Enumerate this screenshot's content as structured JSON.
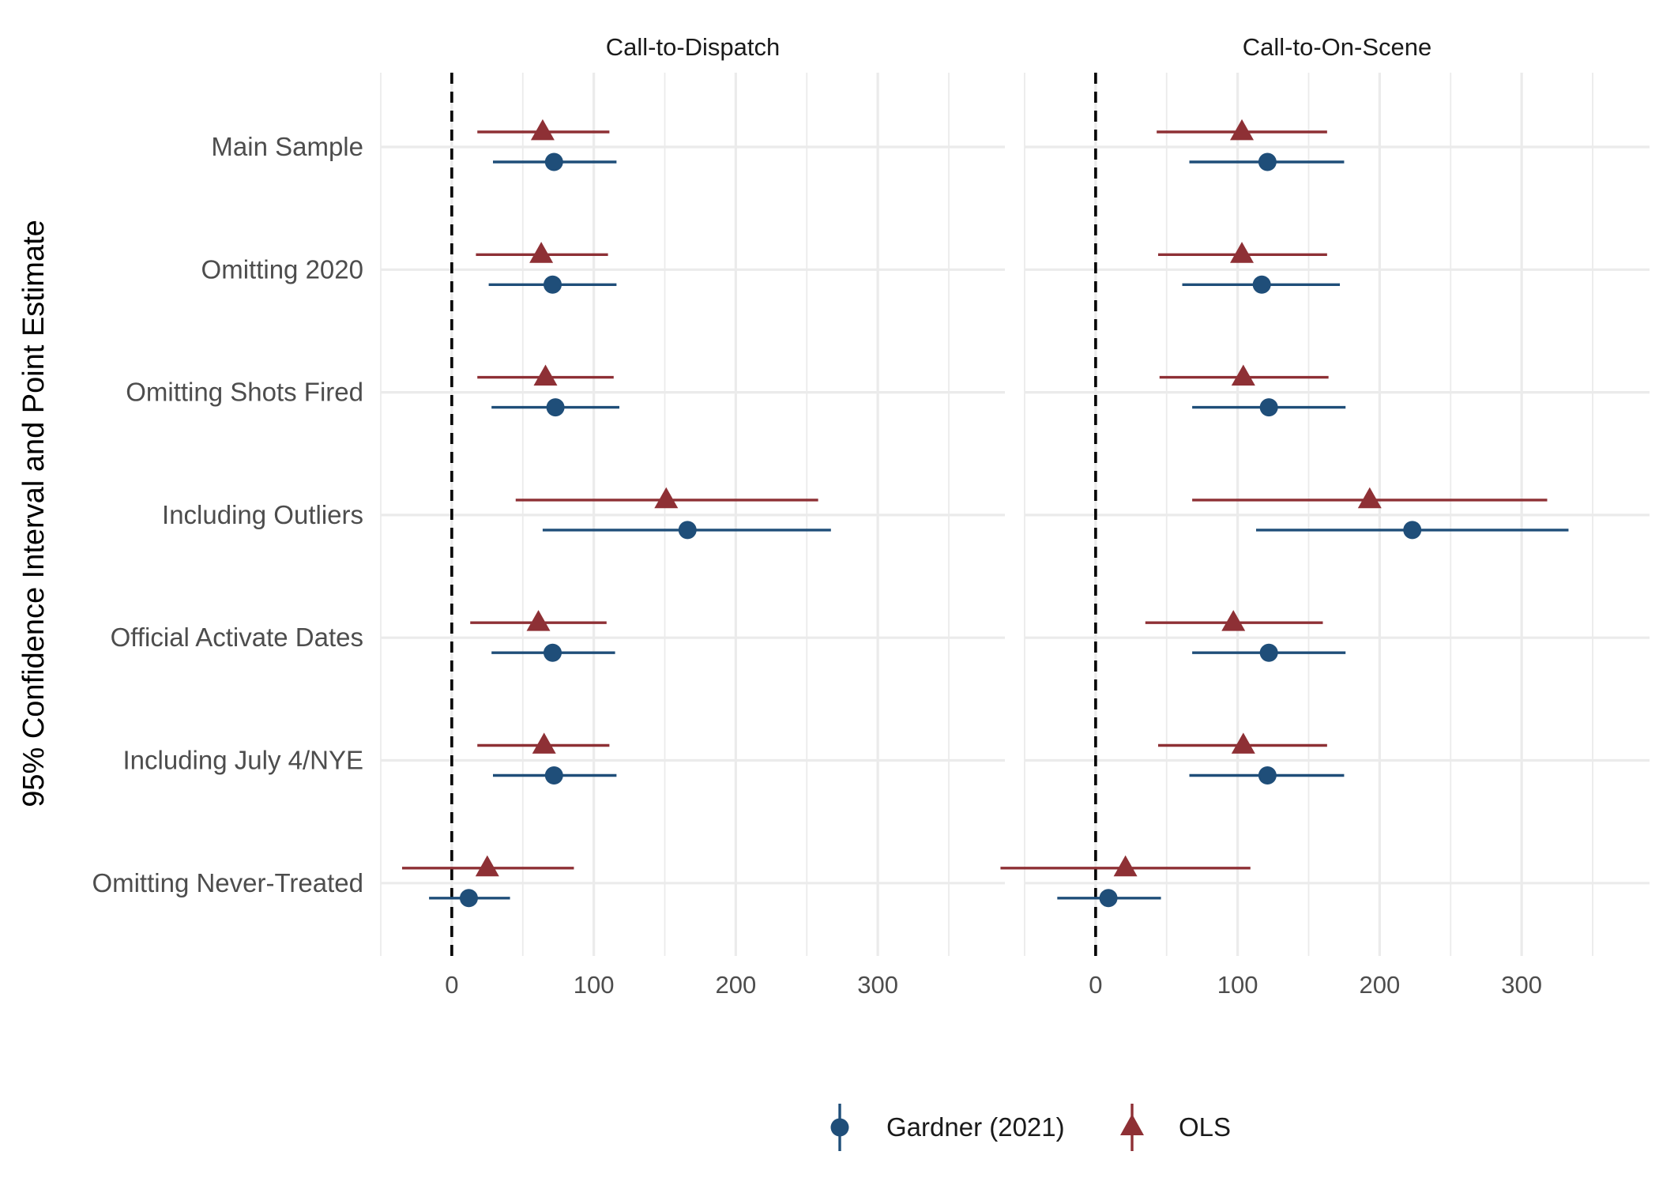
{
  "chart_data": {
    "type": "scatter",
    "ylabel": "95% Confidence Interval and Point Estimate",
    "xlim": [
      -50,
      350
    ],
    "x_ticks": [
      0,
      100,
      200,
      300
    ],
    "reference_line_x": 0,
    "grid": true,
    "legend_position": "bottom",
    "categories": [
      "Main Sample",
      "Omitting 2020",
      "Omitting Shots Fired",
      "Including Outliers",
      "Official Activate Dates",
      "Including July 4/NYE",
      "Omitting Never-Treated"
    ],
    "series": [
      {
        "name": "Gardner (2021)",
        "marker": "circle",
        "color": "#1f4e79"
      },
      {
        "name": "OLS",
        "marker": "triangle",
        "color": "#8e3035"
      }
    ],
    "panels": [
      {
        "title": "Call-to-Dispatch",
        "estimates": {
          "Gardner (2021)": [
            {
              "est": 72,
              "lo": 29,
              "hi": 116
            },
            {
              "est": 71,
              "lo": 26,
              "hi": 116
            },
            {
              "est": 73,
              "lo": 28,
              "hi": 118
            },
            {
              "est": 166,
              "lo": 64,
              "hi": 267
            },
            {
              "est": 71,
              "lo": 28,
              "hi": 115
            },
            {
              "est": 72,
              "lo": 29,
              "hi": 116
            },
            {
              "est": 12,
              "lo": -16,
              "hi": 41
            }
          ],
          "OLS": [
            {
              "est": 64,
              "lo": 18,
              "hi": 111
            },
            {
              "est": 63,
              "lo": 17,
              "hi": 110
            },
            {
              "est": 66,
              "lo": 18,
              "hi": 114
            },
            {
              "est": 151,
              "lo": 45,
              "hi": 258
            },
            {
              "est": 61,
              "lo": 13,
              "hi": 109
            },
            {
              "est": 65,
              "lo": 18,
              "hi": 111
            },
            {
              "est": 25,
              "lo": -35,
              "hi": 86
            }
          ]
        }
      },
      {
        "title": "Call-to-On-Scene",
        "estimates": {
          "Gardner (2021)": [
            {
              "est": 121,
              "lo": 66,
              "hi": 175
            },
            {
              "est": 117,
              "lo": 61,
              "hi": 172
            },
            {
              "est": 122,
              "lo": 68,
              "hi": 176
            },
            {
              "est": 223,
              "lo": 113,
              "hi": 333
            },
            {
              "est": 122,
              "lo": 68,
              "hi": 176
            },
            {
              "est": 121,
              "lo": 66,
              "hi": 175
            },
            {
              "est": 9,
              "lo": -27,
              "hi": 46
            }
          ],
          "OLS": [
            {
              "est": 103,
              "lo": 43,
              "hi": 163
            },
            {
              "est": 103,
              "lo": 44,
              "hi": 163
            },
            {
              "est": 104,
              "lo": 45,
              "hi": 164
            },
            {
              "est": 193,
              "lo": 68,
              "hi": 318
            },
            {
              "est": 97,
              "lo": 35,
              "hi": 160
            },
            {
              "est": 104,
              "lo": 44,
              "hi": 163
            },
            {
              "est": 21,
              "lo": -67,
              "hi": 109
            }
          ]
        }
      }
    ]
  }
}
